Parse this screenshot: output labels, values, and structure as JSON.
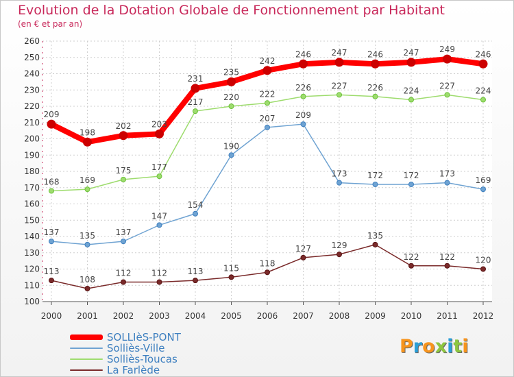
{
  "header": {
    "title": "Evolution de la Dotation Globale de Fonctionnement par Habitant",
    "subtitle": "(en € et par an)"
  },
  "logo": {
    "letters": [
      "P",
      "r",
      "o",
      "x",
      "i",
      "t",
      "i"
    ],
    "colors": [
      "#f7941d",
      "#2a9fd8",
      "#f7941d",
      "#8dc63f",
      "#2a9fd8",
      "#8dc63f",
      "#f7941d"
    ]
  },
  "chart_data": {
    "type": "line",
    "title": "Evolution de la Dotation Globale de Fonctionnement par Habitant",
    "subtitle": "(en € et par an)",
    "xlabel": "",
    "ylabel": "",
    "x": [
      "2000",
      "2001",
      "2002",
      "2003",
      "2004",
      "2005",
      "2006",
      "2007",
      "2008",
      "2009",
      "2010",
      "2011",
      "2012"
    ],
    "ylim": [
      100,
      260
    ],
    "yticks": [
      100,
      110,
      120,
      130,
      140,
      150,
      160,
      170,
      180,
      190,
      200,
      210,
      220,
      230,
      240,
      250,
      260
    ],
    "grid": true,
    "legend_position": "bottom-left",
    "series": [
      {
        "name": "SOLLIèS-PONT",
        "values": [
          209,
          198,
          202,
          203,
          231,
          235,
          242,
          246,
          247,
          246,
          247,
          249,
          246
        ],
        "color": "#ff0000",
        "marker": "#cc0000"
      },
      {
        "name": "Solliès-Ville",
        "values": [
          137,
          135,
          137,
          147,
          154,
          190,
          207,
          209,
          173,
          172,
          172,
          173,
          169
        ],
        "color": "#6fa3d2",
        "marker": "#3f80c0"
      },
      {
        "name": "Solliès-Toucas",
        "values": [
          168,
          169,
          175,
          177,
          217,
          220,
          222,
          226,
          227,
          226,
          224,
          227,
          224
        ],
        "color": "#9edc6e",
        "marker": "#6cc23a"
      },
      {
        "name": "La Farlède",
        "values": [
          113,
          108,
          112,
          112,
          113,
          115,
          118,
          127,
          129,
          135,
          122,
          122,
          120
        ],
        "color": "#7a2a2a",
        "marker": "#5a1414"
      }
    ]
  }
}
